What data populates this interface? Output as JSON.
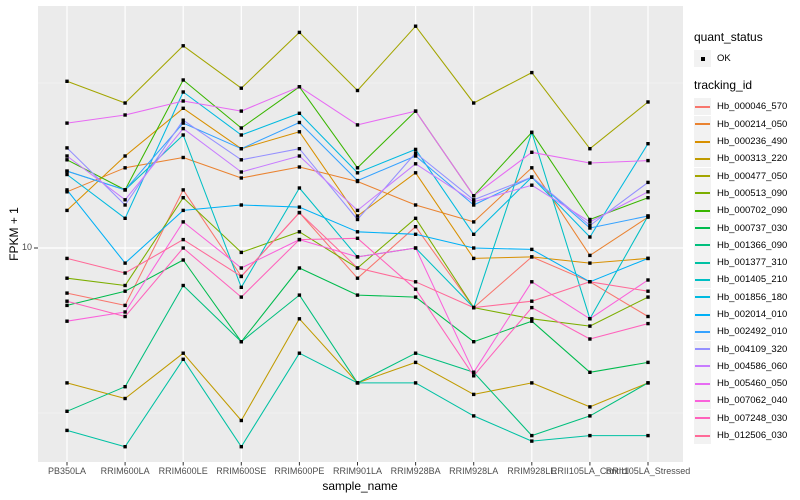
{
  "figure": {
    "background": "#FFFFFF",
    "panel_bg": "#EBEBEB",
    "grid_color": "#FFFFFF",
    "axis_text_color": "#4D4D4D",
    "tick_mark_color": "#333333",
    "point_color": "#000000",
    "legend_key_bg": "#F2F2F2"
  },
  "chart_data": {
    "type": "line",
    "title": "",
    "xlabel": "sample_name",
    "ylabel": "FPKM + 1",
    "y_scale": "log10",
    "y_ticks": [
      10
    ],
    "y_tick_labels": [
      "10"
    ],
    "y_range_approx": [
      2.2,
      52
    ],
    "grid": true,
    "legend_position": "right",
    "points": "black squares at every vertex",
    "quant_status": {
      "title": "quant_status",
      "entries": [
        {
          "label": "OK",
          "shape": "point"
        }
      ]
    },
    "legend_title": "tracking_id",
    "categories": [
      "PB350LA",
      "RRIM600LA",
      "RRIM600LE",
      "RRIM600SE",
      "RRIM600PE",
      "RRIM901LA",
      "RRIM928BA",
      "RRIM928LA",
      "RRIM928LE",
      "RRII105LA_Control",
      "RRII105LA_Stressed"
    ],
    "series": [
      {
        "name": "Hb_000046_570",
        "color": "#F8766D",
        "values": [
          7.3,
          6.7,
          15.0,
          8.2,
          12.8,
          8.1,
          11.6,
          6.6,
          9.4,
          7.9,
          6.2
        ]
      },
      {
        "name": "Hb_000214_050",
        "color": "#EA8331",
        "values": [
          14.8,
          17.5,
          18.8,
          16.3,
          17.6,
          15.9,
          13.5,
          12.0,
          17.5,
          9.5,
          12.4
        ]
      },
      {
        "name": "Hb_000236_490",
        "color": "#D89000",
        "values": [
          13.0,
          19.0,
          26.5,
          20.0,
          22.5,
          12.5,
          16.9,
          9.3,
          9.4,
          9.0,
          9.3
        ]
      },
      {
        "name": "Hb_000313_220",
        "color": "#C09B00",
        "values": [
          3.9,
          3.5,
          4.8,
          3.0,
          6.1,
          3.9,
          4.5,
          3.6,
          3.9,
          3.3,
          3.9
        ]
      },
      {
        "name": "Hb_000477_050",
        "color": "#A3A500",
        "values": [
          32.0,
          27.5,
          41.0,
          30.5,
          45.0,
          30.0,
          47.0,
          27.5,
          34.0,
          20.0,
          27.7
        ]
      },
      {
        "name": "Hb_000513_090",
        "color": "#7CAE00",
        "values": [
          8.1,
          7.7,
          14.2,
          9.7,
          11.2,
          8.7,
          12.3,
          6.6,
          6.1,
          5.8,
          7.1
        ]
      },
      {
        "name": "Hb_000702_090",
        "color": "#39B600",
        "values": [
          18.5,
          15.0,
          32.3,
          23.1,
          30.8,
          17.5,
          26.0,
          14.4,
          22.4,
          12.2,
          14.2
        ]
      },
      {
        "name": "Hb_000737_030",
        "color": "#00BB4E",
        "values": [
          6.7,
          7.4,
          9.2,
          5.2,
          8.7,
          7.2,
          7.1,
          5.2,
          6.0,
          4.2,
          4.5
        ]
      },
      {
        "name": "Hb_001366_090",
        "color": "#00BF7D",
        "values": [
          3.2,
          3.8,
          7.7,
          5.2,
          7.2,
          3.9,
          4.8,
          4.2,
          2.7,
          3.1,
          3.9
        ]
      },
      {
        "name": "Hb_001377_310",
        "color": "#00C1A3",
        "values": [
          2.8,
          2.5,
          4.6,
          2.5,
          4.8,
          3.9,
          3.9,
          3.1,
          2.6,
          2.7,
          2.7
        ]
      },
      {
        "name": "Hb_001405_210",
        "color": "#00BFC4",
        "values": [
          17.1,
          15.0,
          22.0,
          7.6,
          15.2,
          9.4,
          10.0,
          6.6,
          22.4,
          6.1,
          12.5
        ]
      },
      {
        "name": "Hb_001856_180",
        "color": "#00BAE0",
        "values": [
          16.7,
          12.3,
          29.7,
          22.0,
          25.6,
          16.9,
          19.9,
          11.0,
          16.4,
          10.8,
          20.7
        ]
      },
      {
        "name": "Hb_002014_010",
        "color": "#00B0F6",
        "values": [
          15.0,
          9.0,
          13.0,
          13.5,
          13.3,
          11.2,
          11.0,
          10.0,
          9.9,
          7.9,
          9.3
        ]
      },
      {
        "name": "Hb_002492_010",
        "color": "#35A2FF",
        "values": [
          17.1,
          15.0,
          23.9,
          20.0,
          24.0,
          16.0,
          19.0,
          13.5,
          16.4,
          11.5,
          12.5
        ]
      },
      {
        "name": "Hb_004109_320",
        "color": "#9590FF",
        "values": [
          20.1,
          13.5,
          24.4,
          18.5,
          20.0,
          12.2,
          19.4,
          14.0,
          16.4,
          11.7,
          15.8
        ]
      },
      {
        "name": "Hb_004586_060",
        "color": "#C77CFF",
        "values": [
          19.0,
          14.0,
          23.0,
          17.0,
          19.0,
          13.0,
          18.0,
          13.8,
          15.5,
          12.0,
          14.8
        ]
      },
      {
        "name": "Hb_005460_050",
        "color": "#E76BF3",
        "values": [
          23.9,
          25.3,
          27.9,
          26.0,
          30.8,
          23.6,
          26.0,
          14.4,
          19.5,
          18.1,
          18.4
        ]
      },
      {
        "name": "Hb_007062_040",
        "color": "#FA62DB",
        "values": [
          6.0,
          6.4,
          12.0,
          8.7,
          10.6,
          9.4,
          10.0,
          4.2,
          7.9,
          6.1,
          8.0
        ]
      },
      {
        "name": "Hb_007248_030",
        "color": "#FF62BC",
        "values": [
          6.9,
          6.2,
          10.0,
          7.1,
          10.6,
          10.7,
          7.5,
          4.1,
          6.6,
          5.3,
          5.9
        ]
      },
      {
        "name": "Hb_012506_030",
        "color": "#FF6A98",
        "values": [
          9.3,
          8.4,
          10.6,
          8.2,
          12.8,
          8.7,
          7.9,
          6.6,
          6.9,
          7.9,
          7.4
        ]
      }
    ]
  }
}
